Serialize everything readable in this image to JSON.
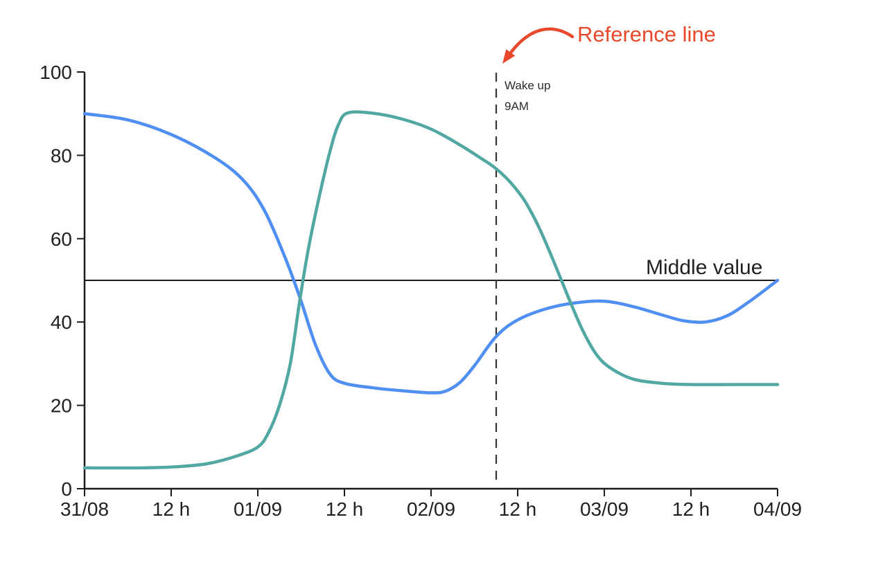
{
  "chart_data": {
    "type": "line",
    "title": "",
    "x_axis": {
      "tick_labels": [
        "31/08",
        "12 h",
        "01/09",
        "12 h",
        "02/09",
        "12 h",
        "03/09",
        "12 h",
        "04/09"
      ],
      "tick_hours": [
        0,
        12,
        24,
        36,
        48,
        60,
        72,
        84,
        96
      ],
      "range_hours": [
        0,
        96
      ]
    },
    "y_axis": {
      "tick_values": [
        0,
        20,
        40,
        60,
        80,
        100
      ],
      "range": [
        0,
        100
      ]
    },
    "grid": "off",
    "legend": "none",
    "series": [
      {
        "name": "blue-series",
        "color": "#4F8EF2",
        "points_time_value": [
          [
            0,
            90
          ],
          [
            6,
            88.5
          ],
          [
            12,
            85
          ],
          [
            18,
            79.5
          ],
          [
            22,
            74
          ],
          [
            25,
            66.5
          ],
          [
            28,
            54.5
          ],
          [
            30,
            45
          ],
          [
            32,
            34.5
          ],
          [
            34,
            27.5
          ],
          [
            36,
            25.3
          ],
          [
            40,
            24.2
          ],
          [
            44,
            23.5
          ],
          [
            48,
            23
          ],
          [
            50,
            23.4
          ],
          [
            52,
            25.5
          ],
          [
            54,
            29.5
          ],
          [
            57,
            36.5
          ],
          [
            60,
            40.5
          ],
          [
            64,
            43.2
          ],
          [
            68,
            44.6
          ],
          [
            72,
            45
          ],
          [
            76,
            43.7
          ],
          [
            80,
            41.7
          ],
          [
            83,
            40.3
          ],
          [
            86,
            40
          ],
          [
            89,
            41.5
          ],
          [
            92,
            44.8
          ],
          [
            96,
            50
          ]
        ]
      },
      {
        "name": "teal-series",
        "color": "#51A8A3",
        "points_time_value": [
          [
            0,
            5
          ],
          [
            8,
            5
          ],
          [
            13,
            5.3
          ],
          [
            17,
            6
          ],
          [
            21,
            7.8
          ],
          [
            24,
            10
          ],
          [
            25.5,
            13.5
          ],
          [
            27,
            20
          ],
          [
            28.5,
            30
          ],
          [
            29.8,
            45
          ],
          [
            31,
            57.5
          ],
          [
            32.5,
            70
          ],
          [
            34,
            81
          ],
          [
            35.2,
            87.5
          ],
          [
            36.5,
            90.2
          ],
          [
            40,
            90.1
          ],
          [
            44,
            88.7
          ],
          [
            48,
            86.3
          ],
          [
            52,
            82.5
          ],
          [
            55,
            79.2
          ],
          [
            57,
            76.8
          ],
          [
            59,
            73.5
          ],
          [
            61,
            69
          ],
          [
            63,
            62.5
          ],
          [
            65,
            54.5
          ],
          [
            67,
            46
          ],
          [
            69,
            38
          ],
          [
            71,
            32
          ],
          [
            73,
            28.8
          ],
          [
            76,
            26.3
          ],
          [
            80,
            25.3
          ],
          [
            84,
            25
          ],
          [
            90,
            25
          ],
          [
            96,
            25
          ]
        ]
      }
    ],
    "annotations": {
      "reference_line": {
        "x_hours": 57,
        "style": "dashed",
        "line_color": "#333333",
        "label_line1": "Wake up",
        "label_line2": "9AM",
        "callout_text": "Reference line",
        "callout_color": "#E8492D"
      },
      "middle_line": {
        "value": 50,
        "style": "solid",
        "line_color": "#1c1c1c",
        "label": "Middle value"
      }
    }
  }
}
